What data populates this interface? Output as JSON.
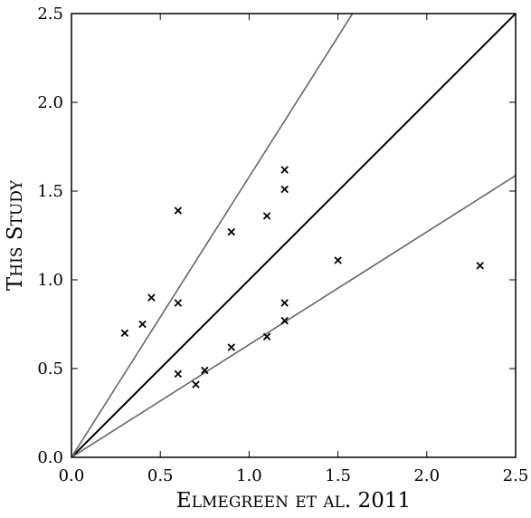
{
  "chart_data": {
    "type": "scatter",
    "title": "",
    "xlabel": "Elmegreen et al. 2011",
    "ylabel": "This Study",
    "xlim": [
      0.0,
      2.5
    ],
    "ylim": [
      0.0,
      2.5
    ],
    "x_ticks": [
      "0.0",
      "0.5",
      "1.0",
      "1.5",
      "2.0",
      "2.5"
    ],
    "y_ticks": [
      "0.0",
      "0.5",
      "1.0",
      "1.5",
      "2.0",
      "2.5"
    ],
    "grid": false,
    "marker": "x",
    "points": [
      {
        "x": 0.3,
        "y": 0.7
      },
      {
        "x": 0.4,
        "y": 0.75
      },
      {
        "x": 0.45,
        "y": 0.9
      },
      {
        "x": 0.6,
        "y": 1.39
      },
      {
        "x": 0.6,
        "y": 0.87
      },
      {
        "x": 0.6,
        "y": 0.47
      },
      {
        "x": 0.7,
        "y": 0.41
      },
      {
        "x": 0.75,
        "y": 0.49
      },
      {
        "x": 0.9,
        "y": 1.27
      },
      {
        "x": 0.9,
        "y": 0.62
      },
      {
        "x": 1.1,
        "y": 1.36
      },
      {
        "x": 1.1,
        "y": 0.68
      },
      {
        "x": 1.2,
        "y": 1.62
      },
      {
        "x": 1.2,
        "y": 1.51
      },
      {
        "x": 1.2,
        "y": 0.87
      },
      {
        "x": 1.2,
        "y": 0.77
      },
      {
        "x": 1.5,
        "y": 1.11
      },
      {
        "x": 2.3,
        "y": 1.08
      }
    ],
    "reference_lines": [
      {
        "slope": 1.0,
        "color": "#000000"
      },
      {
        "slope": 1.58,
        "color": "#666666"
      },
      {
        "slope": 0.635,
        "color": "#666666"
      }
    ],
    "colors": {
      "points": "#000000",
      "axes": "#000000"
    }
  }
}
